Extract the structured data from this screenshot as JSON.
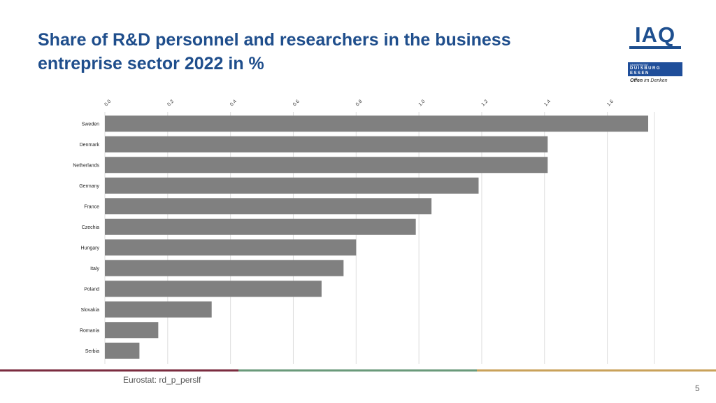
{
  "slide": {
    "title": "Share of R&D personnel and researchers in the business entreprise sector 2022 in %",
    "source": "Eurostat: rd_p_perslf",
    "page_number": "5",
    "footer_colors": [
      "#7b2c3f",
      "#6a9a7a",
      "#c9a25a"
    ]
  },
  "logos": {
    "iaq": "IAQ",
    "ude_small": "UNIVERSITÄT",
    "ude_name_line1": "DUISBURG",
    "ude_name_line2": "ESSEN",
    "motto_bold": "Offen",
    "motto_rest": " im Denken"
  },
  "chart_data": {
    "type": "bar",
    "orientation": "horizontal",
    "title": "",
    "xlabel": "",
    "ylabel": "",
    "xlim": [
      0,
      1.75
    ],
    "ticks": [
      0.0,
      0.2,
      0.4,
      0.6,
      0.8,
      1.0,
      1.2,
      1.4,
      1.6
    ],
    "tick_labels": [
      "0.0",
      "0.2",
      "0.4",
      "0.6",
      "0.8",
      "1.0",
      "1.2",
      "1.4",
      "1.6"
    ],
    "categories": [
      "Sweden",
      "Denmark",
      "Netherlands",
      "Germany",
      "France",
      "Czechia",
      "Hungary",
      "Italy",
      "Poland",
      "Slovakia",
      "Romania",
      "Serbia"
    ],
    "values": [
      1.73,
      1.41,
      1.41,
      1.19,
      1.04,
      0.99,
      0.8,
      0.76,
      0.69,
      0.34,
      0.17,
      0.11
    ],
    "bar_color": "#808080",
    "grid_color": "#dddddd",
    "grid": true
  }
}
